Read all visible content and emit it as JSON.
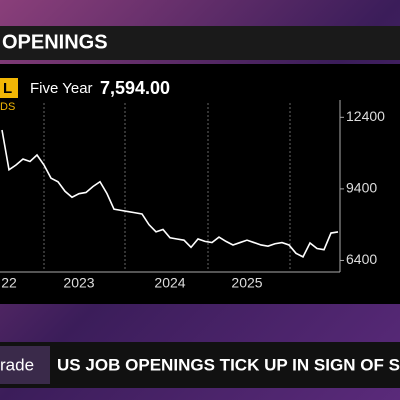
{
  "banner": "OPENINGS",
  "ticker_tag": "L",
  "period": "Five Year",
  "last_value": "7,594.00",
  "source_tag": "DS",
  "lower_third": {
    "left": "rade",
    "headline": "US JOB OPENINGS TICK UP IN SIGN OF S"
  },
  "chart_data": {
    "type": "line",
    "color": "#ffffff",
    "categories": [
      null,
      "22",
      null,
      null,
      null,
      null,
      null,
      null,
      null,
      null,
      null,
      "2023",
      null,
      null,
      null,
      null,
      null,
      null,
      null,
      null,
      null,
      null,
      null,
      null,
      "2024",
      null,
      null,
      null,
      null,
      null,
      null,
      null,
      null,
      null,
      null,
      "2025",
      null,
      null,
      null,
      null,
      null,
      null,
      null,
      null,
      null,
      null,
      null,
      null,
      null
    ],
    "values": [
      11870,
      10200,
      10400,
      10650,
      10550,
      10820,
      10400,
      9850,
      9700,
      9300,
      9050,
      9200,
      9250,
      9500,
      9700,
      9200,
      8550,
      8500,
      8450,
      8400,
      8350,
      7900,
      7600,
      7700,
      7350,
      7300,
      7250,
      6950,
      7300,
      7200,
      7150,
      7380,
      7200,
      7050,
      7150,
      7250,
      7150,
      7050,
      7000,
      7100,
      7150,
      7050,
      6700,
      6550,
      7130,
      6900,
      6850,
      7550,
      7594
    ],
    "ylim": [
      6000,
      13000
    ],
    "yticks": [
      12400,
      9400,
      6400
    ]
  }
}
